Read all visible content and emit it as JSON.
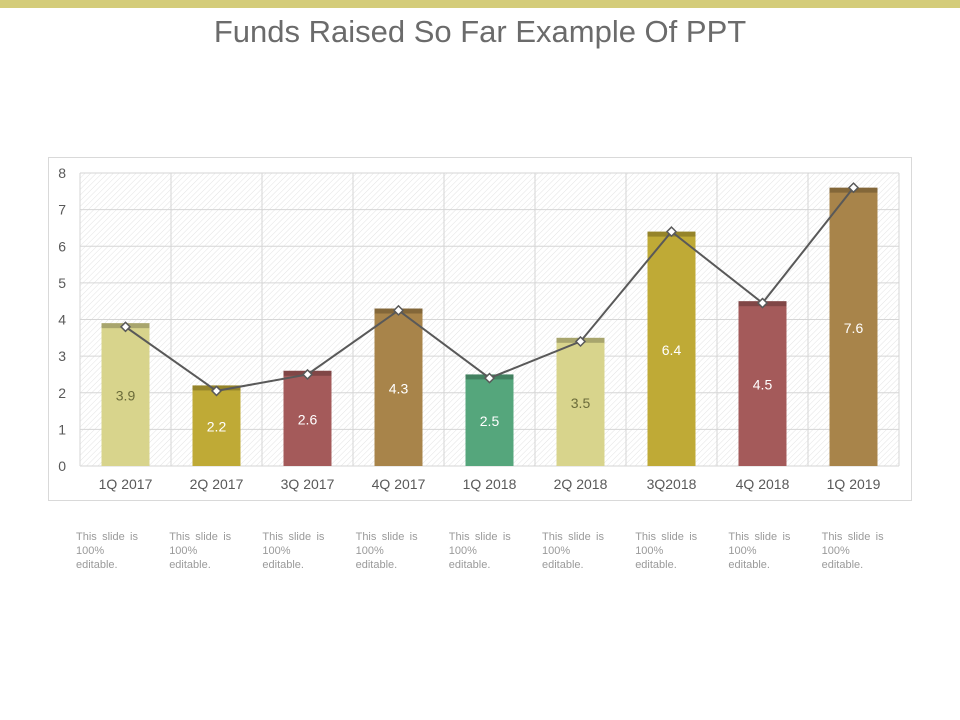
{
  "slide": {
    "title": "Funds Raised So Far Example Of PPT"
  },
  "colors": {
    "accent_bar": "#d4cc7a"
  },
  "chart_data": {
    "type": "bar",
    "title": "",
    "xlabel": "",
    "ylabel": "",
    "ylim": [
      0,
      8
    ],
    "yticks": [
      0,
      1,
      2,
      3,
      4,
      5,
      6,
      7,
      8
    ],
    "grid": true,
    "categories": [
      "1Q 2017",
      "2Q 2017",
      "3Q 2017",
      "4Q 2017",
      "1Q 2018",
      "2Q 2018",
      "3Q2018",
      "4Q 2018",
      "1Q 2019"
    ],
    "values": [
      3.9,
      2.2,
      2.6,
      4.3,
      2.5,
      3.5,
      6.4,
      4.5,
      7.6
    ],
    "labels": [
      "3.9",
      "2.2",
      "2.6",
      "4.3",
      "2.5",
      "3.5",
      "6.4",
      "4.5",
      "7.6"
    ],
    "bar_colors": [
      "#d8d48c",
      "#bfaa36",
      "#a45a5a",
      "#a8844a",
      "#55a67c",
      "#d8d48c",
      "#bfaa36",
      "#a45a5a",
      "#a8844a"
    ],
    "label_colors": [
      "#6b6b3a",
      "#ffffff",
      "#ffffff",
      "#ffffff",
      "#ffffff",
      "#6b6b3a",
      "#ffffff",
      "#ffffff",
      "#ffffff"
    ],
    "line_series": {
      "name": "trend",
      "values": [
        3.8,
        2.05,
        2.5,
        4.25,
        2.4,
        3.4,
        6.4,
        4.45,
        7.6
      ],
      "color": "#595959"
    }
  },
  "notes": [
    "This slide is 100% editable.",
    "This slide is 100% editable.",
    "This slide is 100% editable.",
    "This slide is 100% editable.",
    "This slide is 100% editable.",
    "This slide is 100% editable.",
    "This slide is 100% editable.",
    "This slide is 100% editable.",
    "This slide is 100% editable."
  ]
}
